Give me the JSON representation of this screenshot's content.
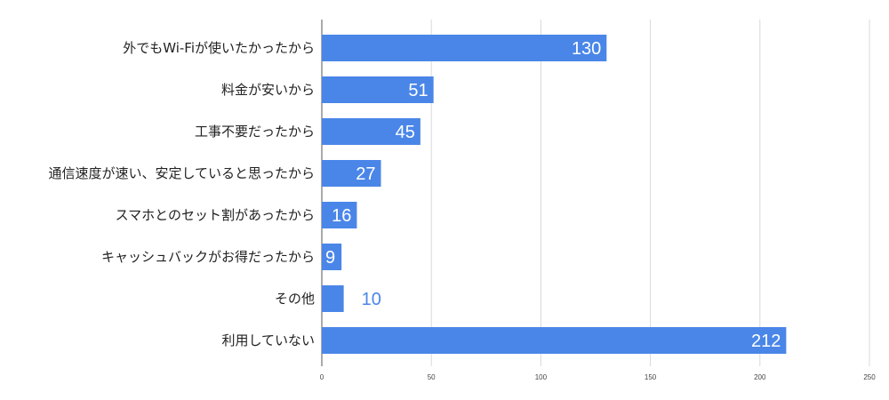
{
  "chart_data": {
    "type": "bar",
    "orientation": "horizontal",
    "categories": [
      "外でもWi-Fiが使いたかったから",
      "料金が安いから",
      "工事不要だったから",
      "通信速度が速い、安定していると思ったから",
      "スマホとのセット割があったから",
      "キャッシュバックがお得だったから",
      "その他",
      "利用していない"
    ],
    "values": [
      130,
      51,
      45,
      27,
      16,
      9,
      10,
      212
    ],
    "xlim": [
      0,
      250
    ],
    "xticks": [
      "0",
      "50",
      "100",
      "150",
      "200",
      "250"
    ],
    "grid": true,
    "bar_color": "#4a86e8",
    "label_color_inside": "#ffffff",
    "label_color_outside": "#4a86e8"
  }
}
